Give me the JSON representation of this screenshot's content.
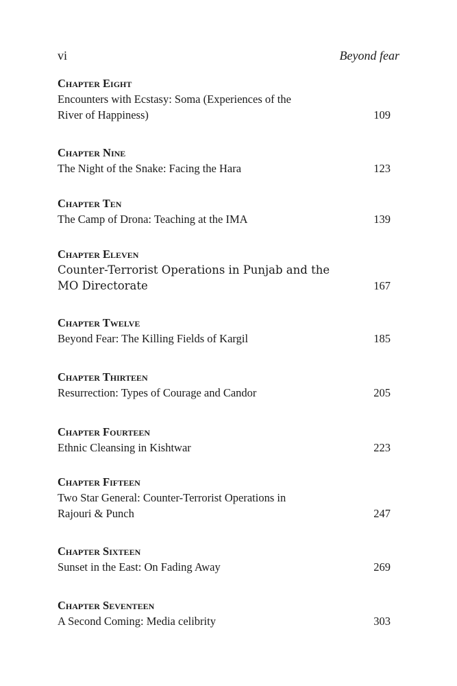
{
  "header": {
    "page_number": "vi",
    "running_title": "Beyond fear"
  },
  "entries": [
    {
      "heading": "Chapter Eight",
      "title": "Encounters with Ecstasy: Soma  (Experiences of the River of Happiness)",
      "page": "109"
    },
    {
      "heading": "Chapter Nine",
      "title": "The Night of the Snake: Facing the Hara",
      "page": "123"
    },
    {
      "heading": "Chapter Ten",
      "title": "The Camp of Drona: Teaching at the IMA",
      "page": "139"
    },
    {
      "heading": "Chapter Eleven",
      "title": "Counter-Terrorist Operations in Punjab and the MO Directorate",
      "page": "167"
    },
    {
      "heading": "Chapter Twelve",
      "title": "Beyond Fear: The Killing Fields of Kargil",
      "page": "185"
    },
    {
      "heading": "Chapter Thirteen",
      "title": "Resurrection: Types of Courage and Candor",
      "page": "205"
    },
    {
      "heading": "Chapter Fourteen",
      "title": "Ethnic Cleansing in Kishtwar",
      "page": "223"
    },
    {
      "heading": "Chapter Fifteen",
      "title": "Two Star General: Counter-Terrorist Operations in Rajouri & Punch",
      "page": "247"
    },
    {
      "heading": "Chapter Sixteen",
      "title": "Sunset in the East: On Fading Away",
      "page": "269"
    },
    {
      "heading": "Chapter Seventeen",
      "title": "A Second Coming: Media celibrity",
      "page": "303"
    }
  ]
}
